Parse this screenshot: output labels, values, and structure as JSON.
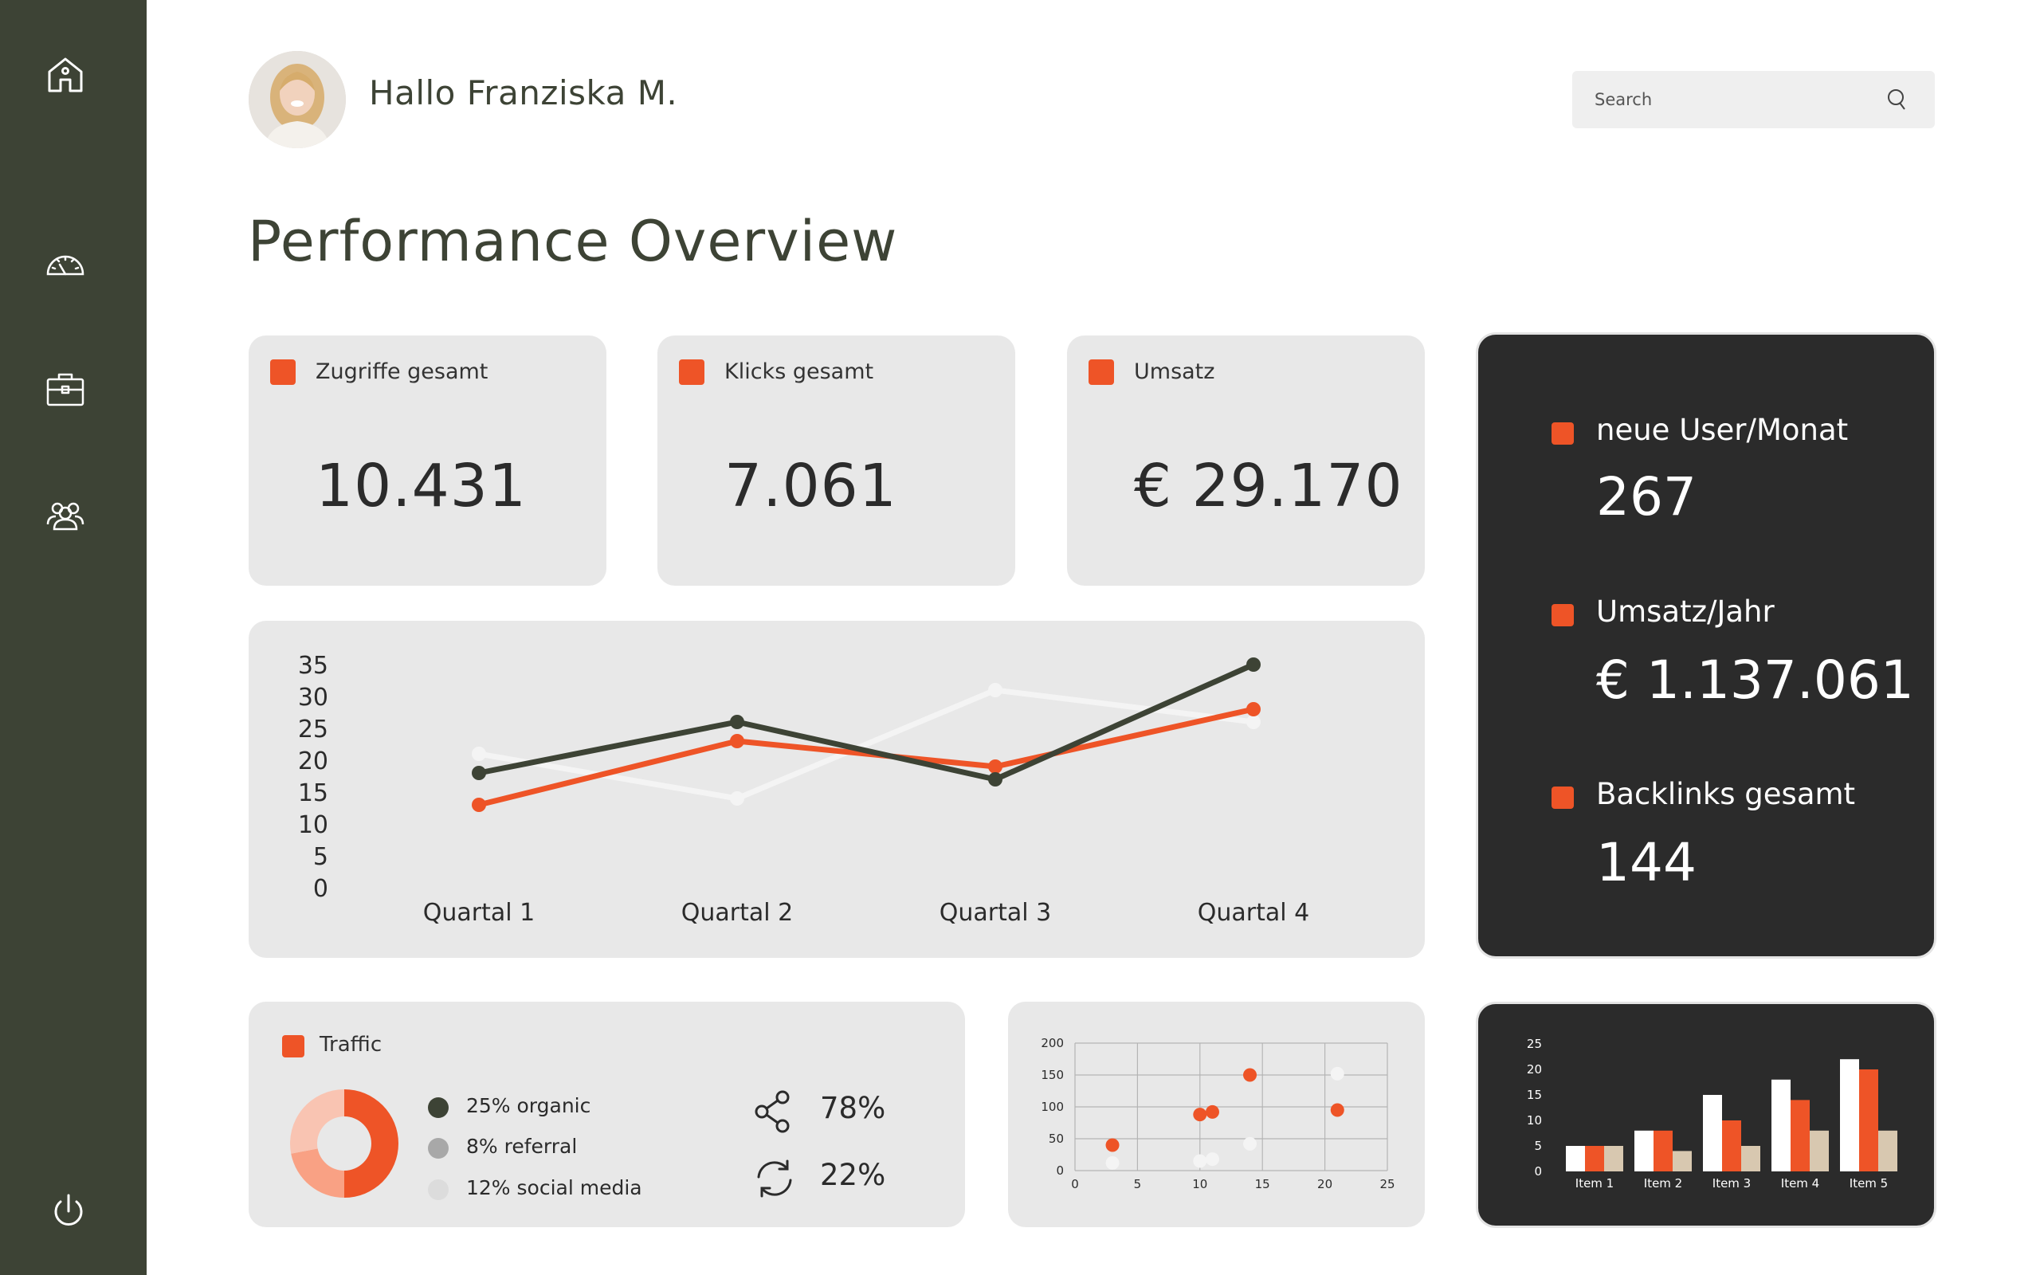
{
  "sidebar": {
    "items": [
      {
        "icon": "home-icon",
        "label": ""
      },
      {
        "icon": "speedometer-icon",
        "label": ""
      },
      {
        "icon": "briefcase-icon",
        "label": ""
      },
      {
        "icon": "users-icon",
        "label": ""
      }
    ],
    "footer_icon": "power-icon"
  },
  "header": {
    "greeting": "Hallo Franziska M.",
    "search_placeholder": "Search"
  },
  "page_title": "Performance Overview",
  "kpis": [
    {
      "label": "Zugriffe gesamt",
      "value": "10.431"
    },
    {
      "label": "Klicks gesamt",
      "value": "7.061"
    },
    {
      "label": "Umsatz",
      "value": "€ 29.170"
    }
  ],
  "stats": [
    {
      "label": "neue User/Monat",
      "value": "267"
    },
    {
      "label": "Umsatz/Jahr",
      "value": "€ 1.137.061"
    },
    {
      "label": "Backlinks gesamt",
      "value": "144"
    }
  ],
  "traffic": {
    "title": "Traffic",
    "legend": [
      {
        "label": "25% organic",
        "color": "#3d4335"
      },
      {
        "label": "8% referral",
        "color": "#a8a8a8"
      },
      {
        "label": "12% social media",
        "color": "#dcdcdc"
      }
    ],
    "share_value": "78%",
    "sync_value": "22%"
  },
  "colors": {
    "accent": "#ee5427",
    "sidebar": "#3d4335",
    "dark_panel": "#2b2b2b",
    "card": "#e8e8e8",
    "light_line": "#f4f4f4",
    "beige": "#d8c8b0"
  },
  "chart_data": [
    {
      "type": "line",
      "categories": [
        "Quartal 1",
        "Quartal 2",
        "Quartal 3",
        "Quartal 4"
      ],
      "ylim": [
        0,
        35
      ],
      "yticks": [
        0,
        5,
        10,
        15,
        20,
        25,
        30,
        35
      ],
      "series": [
        {
          "values": [
            18,
            26,
            17,
            35
          ],
          "color": "#3d4335"
        },
        {
          "values": [
            13,
            23,
            19,
            28
          ],
          "color": "#ee5427"
        },
        {
          "values": [
            21,
            14,
            31,
            26
          ],
          "color": "#f4f4f4"
        }
      ]
    },
    {
      "type": "scatter",
      "xlim": [
        0,
        25
      ],
      "ylim": [
        0,
        200
      ],
      "xticks": [
        0,
        5,
        10,
        15,
        20,
        25
      ],
      "yticks": [
        0,
        50,
        100,
        150,
        200
      ],
      "grid": true,
      "series": [
        {
          "color": "#ee5427",
          "points": [
            [
              3,
              40
            ],
            [
              10,
              88
            ],
            [
              11,
              92
            ],
            [
              14,
              150
            ],
            [
              21,
              95
            ]
          ]
        },
        {
          "color": "#f4f4f4",
          "points": [
            [
              3,
              12
            ],
            [
              10,
              15
            ],
            [
              11,
              18
            ],
            [
              14,
              42
            ],
            [
              21,
              152
            ]
          ]
        }
      ]
    },
    {
      "type": "bar",
      "categories": [
        "Item 1",
        "Item 2",
        "Item 3",
        "Item 4",
        "Item 5"
      ],
      "ylim": [
        0,
        25
      ],
      "yticks": [
        0,
        5,
        10,
        15,
        20,
        25
      ],
      "series": [
        {
          "values": [
            5,
            8,
            15,
            18,
            22
          ],
          "color": "#ffffff"
        },
        {
          "values": [
            5,
            8,
            10,
            14,
            20
          ],
          "color": "#ee5427"
        },
        {
          "values": [
            5,
            4,
            5,
            8,
            8
          ],
          "color": "#d8c8b0"
        }
      ]
    },
    {
      "type": "pie",
      "donut": true,
      "values": [
        50,
        22,
        28
      ],
      "colors": [
        "#ee5427",
        "#f9a184",
        "#f9c4b2"
      ]
    }
  ]
}
